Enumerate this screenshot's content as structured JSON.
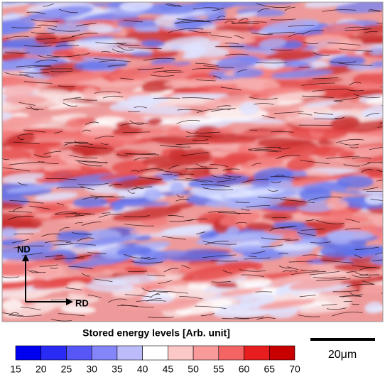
{
  "map": {
    "axes": {
      "vertical": "ND",
      "horizontal": "RD"
    }
  },
  "colorbar": {
    "title": "Stored energy levels [Arb. unit]",
    "ticks": [
      15,
      20,
      25,
      30,
      35,
      40,
      45,
      50,
      55,
      60,
      65,
      70
    ],
    "colors": [
      "#0000f0",
      "#2a2af5",
      "#5757f7",
      "#8585fa",
      "#bcbcfb",
      "#ffffff",
      "#fcc7c7",
      "#f99a9a",
      "#f46464",
      "#e81e1e",
      "#c80000"
    ]
  },
  "scale_bar": {
    "label": "20μm"
  }
}
